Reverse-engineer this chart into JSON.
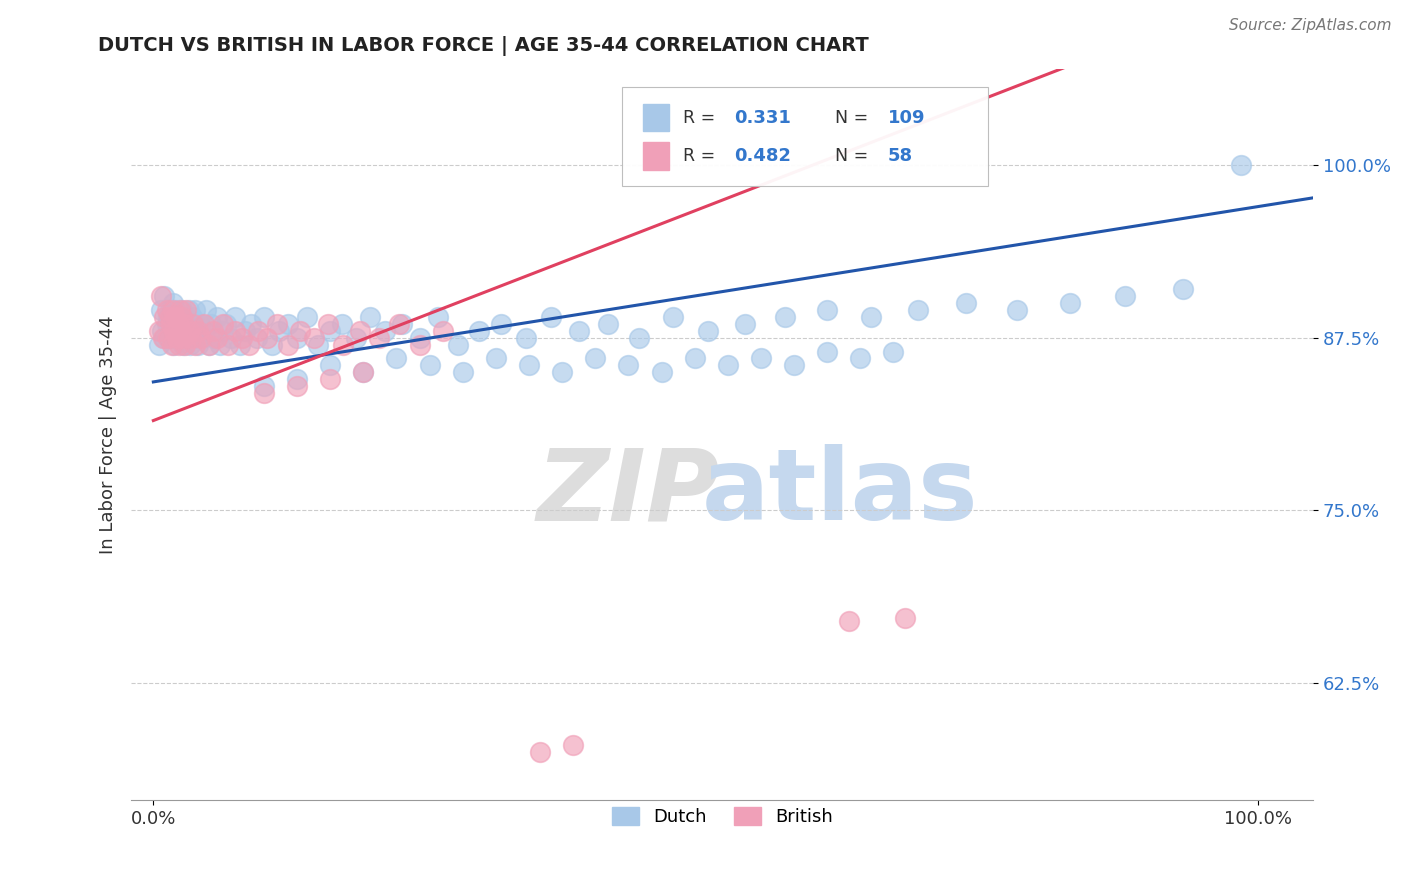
{
  "title": "DUTCH VS BRITISH IN LABOR FORCE | AGE 35-44 CORRELATION CHART",
  "source": "Source: ZipAtlas.com",
  "ylabel": "In Labor Force | Age 35-44",
  "legend_r_dutch": "0.331",
  "legend_n_dutch": "109",
  "legend_r_british": "0.482",
  "legend_n_british": "58",
  "dutch_color": "#a8c8e8",
  "british_color": "#f0a0b8",
  "trendline_dutch_color": "#2255aa",
  "trendline_british_color": "#e04060",
  "dutch_x": [
    0.005,
    0.007,
    0.008,
    0.01,
    0.01,
    0.012,
    0.013,
    0.014,
    0.015,
    0.015,
    0.016,
    0.017,
    0.018,
    0.018,
    0.019,
    0.02,
    0.02,
    0.021,
    0.022,
    0.023,
    0.024,
    0.025,
    0.026,
    0.027,
    0.028,
    0.029,
    0.03,
    0.031,
    0.032,
    0.033,
    0.034,
    0.035,
    0.036,
    0.037,
    0.038,
    0.04,
    0.042,
    0.044,
    0.046,
    0.048,
    0.05,
    0.052,
    0.055,
    0.058,
    0.06,
    0.063,
    0.066,
    0.07,
    0.074,
    0.078,
    0.083,
    0.088,
    0.094,
    0.1,
    0.107,
    0.114,
    0.122,
    0.13,
    0.139,
    0.149,
    0.16,
    0.171,
    0.183,
    0.196,
    0.21,
    0.225,
    0.241,
    0.258,
    0.276,
    0.295,
    0.315,
    0.337,
    0.36,
    0.385,
    0.412,
    0.44,
    0.47,
    0.502,
    0.536,
    0.572,
    0.61,
    0.65,
    0.692,
    0.736,
    0.782,
    0.83,
    0.88,
    0.932,
    0.985,
    0.1,
    0.13,
    0.16,
    0.19,
    0.22,
    0.25,
    0.28,
    0.31,
    0.34,
    0.37,
    0.4,
    0.43,
    0.46,
    0.49,
    0.52,
    0.55,
    0.58,
    0.61,
    0.64,
    0.67
  ],
  "dutch_y": [
    0.87,
    0.895,
    0.88,
    0.905,
    0.875,
    0.885,
    0.89,
    0.875,
    0.88,
    0.895,
    0.885,
    0.875,
    0.89,
    0.9,
    0.87,
    0.88,
    0.895,
    0.875,
    0.885,
    0.89,
    0.875,
    0.88,
    0.895,
    0.87,
    0.885,
    0.89,
    0.875,
    0.88,
    0.895,
    0.87,
    0.885,
    0.89,
    0.875,
    0.88,
    0.895,
    0.87,
    0.885,
    0.875,
    0.88,
    0.895,
    0.87,
    0.885,
    0.875,
    0.89,
    0.87,
    0.88,
    0.885,
    0.875,
    0.89,
    0.87,
    0.88,
    0.885,
    0.875,
    0.89,
    0.87,
    0.88,
    0.885,
    0.875,
    0.89,
    0.87,
    0.88,
    0.885,
    0.875,
    0.89,
    0.88,
    0.885,
    0.875,
    0.89,
    0.87,
    0.88,
    0.885,
    0.875,
    0.89,
    0.88,
    0.885,
    0.875,
    0.89,
    0.88,
    0.885,
    0.89,
    0.895,
    0.89,
    0.895,
    0.9,
    0.895,
    0.9,
    0.905,
    0.91,
    1.0,
    0.84,
    0.845,
    0.855,
    0.85,
    0.86,
    0.855,
    0.85,
    0.86,
    0.855,
    0.85,
    0.86,
    0.855,
    0.85,
    0.86,
    0.855,
    0.86,
    0.855,
    0.865,
    0.86,
    0.865
  ],
  "british_x": [
    0.005,
    0.007,
    0.009,
    0.01,
    0.012,
    0.013,
    0.015,
    0.016,
    0.017,
    0.018,
    0.019,
    0.02,
    0.021,
    0.022,
    0.023,
    0.024,
    0.025,
    0.026,
    0.027,
    0.028,
    0.029,
    0.03,
    0.032,
    0.034,
    0.036,
    0.038,
    0.04,
    0.043,
    0.046,
    0.05,
    0.054,
    0.058,
    0.063,
    0.068,
    0.074,
    0.08,
    0.087,
    0.095,
    0.103,
    0.112,
    0.122,
    0.133,
    0.145,
    0.158,
    0.172,
    0.187,
    0.204,
    0.222,
    0.241,
    0.262,
    0.1,
    0.13,
    0.16,
    0.19,
    0.63,
    0.68,
    0.35,
    0.38
  ],
  "british_y": [
    0.88,
    0.905,
    0.875,
    0.89,
    0.895,
    0.875,
    0.89,
    0.885,
    0.87,
    0.895,
    0.88,
    0.89,
    0.875,
    0.885,
    0.87,
    0.895,
    0.88,
    0.89,
    0.875,
    0.885,
    0.87,
    0.895,
    0.88,
    0.875,
    0.885,
    0.87,
    0.88,
    0.875,
    0.885,
    0.87,
    0.88,
    0.875,
    0.885,
    0.87,
    0.88,
    0.875,
    0.87,
    0.88,
    0.875,
    0.885,
    0.87,
    0.88,
    0.875,
    0.885,
    0.87,
    0.88,
    0.875,
    0.885,
    0.87,
    0.88,
    0.835,
    0.84,
    0.845,
    0.85,
    0.67,
    0.672,
    0.575,
    0.58
  ],
  "yticks": [
    0.625,
    0.75,
    0.875,
    1.0
  ],
  "ytick_labels": [
    "62.5%",
    "75.0%",
    "87.5%",
    "100.0%"
  ],
  "xlim": [
    -0.02,
    1.05
  ],
  "ylim": [
    0.54,
    1.07
  ]
}
